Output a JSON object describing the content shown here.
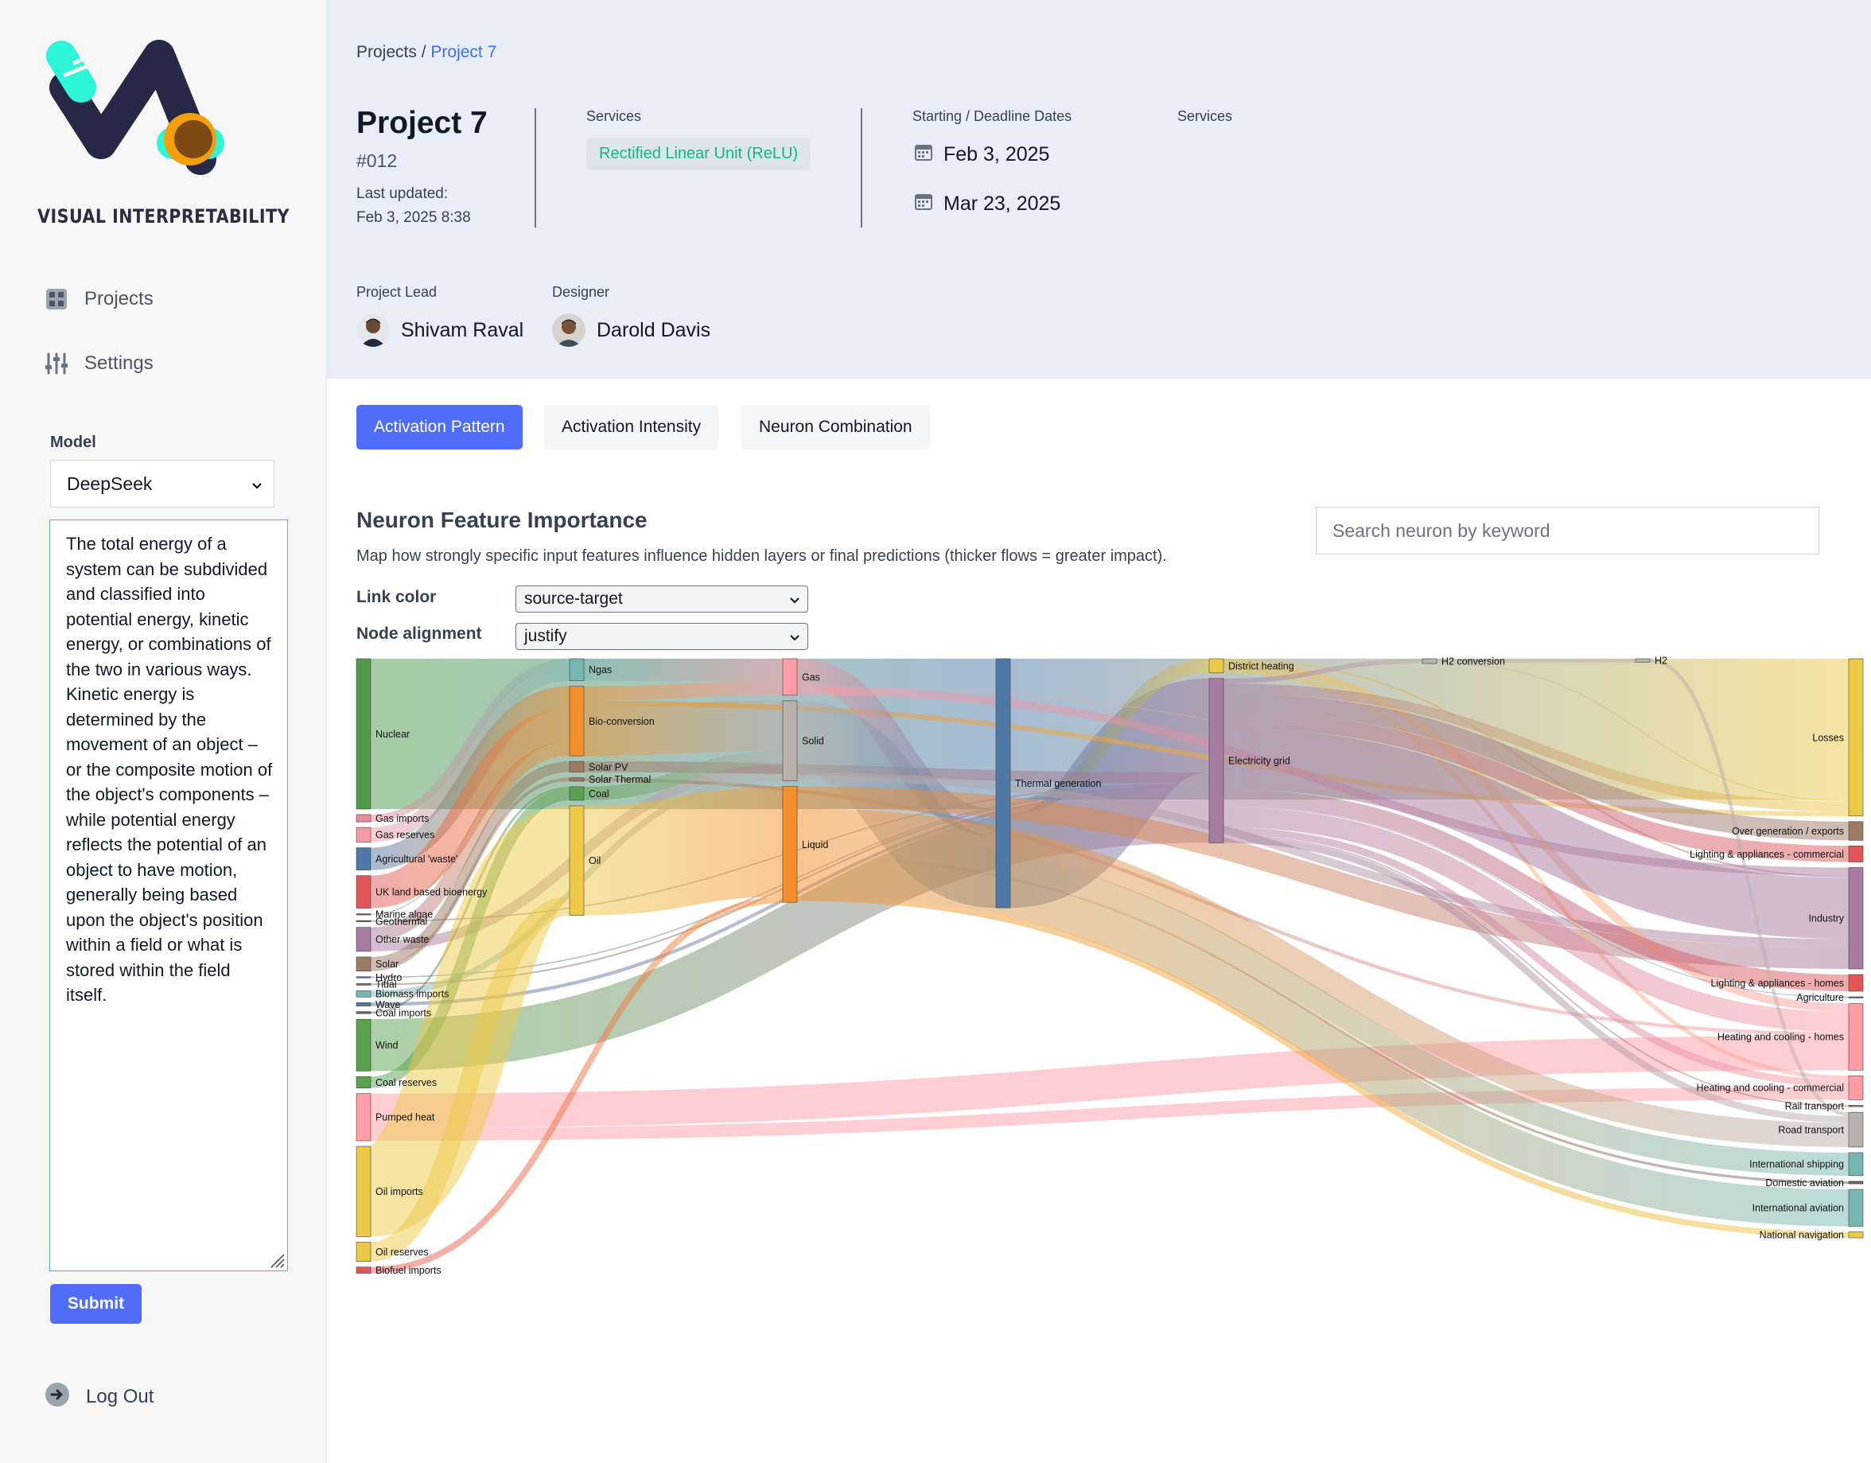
{
  "sidebar": {
    "brand": "VISUAL INTERPRETABILITY",
    "nav": [
      {
        "label": "Projects",
        "icon": "grid-icon"
      },
      {
        "label": "Settings",
        "icon": "sliders-icon"
      }
    ],
    "model_label": "Model",
    "model_selected": "DeepSeek",
    "prompt_text": "The total energy of a system can be subdivided and classified into potential energy, kinetic energy, or combinations of the two in various ways. Kinetic energy is determined by the movement of an object – or the composite motion of the object's components – while potential energy reflects the potential of an object to have motion, generally being based upon the object's position within a field or what is stored within the field itself.",
    "submit_label": "Submit",
    "logout_label": "Log Out"
  },
  "header": {
    "breadcrumb_root": "Projects",
    "breadcrumb_sep": "/",
    "breadcrumb_current": "Project 7",
    "title": "Project 7",
    "id": "#012",
    "updated_label": "Last updated:",
    "updated_value": "Feb 3, 2025 8:38",
    "services_label": "Services",
    "service_badge": "Rectified Linear Unit (ReLU)",
    "dates_label": "Starting / Deadline Dates",
    "start_date": "Feb 3, 2025",
    "deadline_date": "Mar 23, 2025",
    "services_label_2": "Services",
    "lead_label": "Project Lead",
    "lead_name": "Shivam Raval",
    "designer_label": "Designer",
    "designer_name": "Darold Davis"
  },
  "tabs": [
    "Activation Pattern",
    "Activation Intensity",
    "Neuron Combination"
  ],
  "panel": {
    "title": "Neuron Feature Importance",
    "description": "Map how strongly specific input features influence hidden layers or final predictions (thicker flows = greater impact).",
    "search_placeholder": "Search neuron by keyword",
    "link_color_label": "Link color",
    "link_color_value": "source-target",
    "node_alignment_label": "Node alignment",
    "node_alignment_value": "justify"
  },
  "colors": {
    "accent": "#4f6ef7",
    "badge_text": "#10b981",
    "header_bg": "#e8eef7"
  },
  "chart_data": {
    "type": "sankey",
    "nodes": [
      {
        "id": "nuclear",
        "label": "Nuclear",
        "color": "#4e9a4a"
      },
      {
        "id": "gas_imports",
        "label": "Gas imports",
        "color": "#e58d9c"
      },
      {
        "id": "gas_reserves",
        "label": "Gas reserves",
        "color": "#f39aa4"
      },
      {
        "id": "agri_waste",
        "label": "Agricultural 'waste'",
        "color": "#4f78a8"
      },
      {
        "id": "uk_bio",
        "label": "UK land based bioenergy",
        "color": "#e15759"
      },
      {
        "id": "marine_algae",
        "label": "Marine algae",
        "color": "#666"
      },
      {
        "id": "geothermal",
        "label": "Geothermal",
        "color": "#666"
      },
      {
        "id": "other_waste",
        "label": "Other waste",
        "color": "#a77aa0"
      },
      {
        "id": "solar",
        "label": "Solar",
        "color": "#9c7a63"
      },
      {
        "id": "hydro",
        "label": "Hydro",
        "color": "#4e79a7"
      },
      {
        "id": "tidal",
        "label": "Tidal",
        "color": "#8c6d63"
      },
      {
        "id": "biomass_imports",
        "label": "Biomass imports",
        "color": "#76b7b2"
      },
      {
        "id": "wave",
        "label": "Wave",
        "color": "#4e79a7"
      },
      {
        "id": "coal_imports",
        "label": "Coal imports",
        "color": "#666"
      },
      {
        "id": "wind",
        "label": "Wind",
        "color": "#59a14f"
      },
      {
        "id": "coal_reserves",
        "label": "Coal reserves",
        "color": "#59a14f"
      },
      {
        "id": "pumped_heat",
        "label": "Pumped heat",
        "color": "#ff9da7"
      },
      {
        "id": "oil_imports",
        "label": "Oil imports",
        "color": "#edc948"
      },
      {
        "id": "oil_reserves",
        "label": "Oil reserves",
        "color": "#edc948"
      },
      {
        "id": "biofuel_imports",
        "label": "Biofuel imports",
        "color": "#e15759"
      },
      {
        "id": "ngas",
        "label": "Ngas",
        "color": "#76b7b2"
      },
      {
        "id": "bioconv",
        "label": "Bio-conversion",
        "color": "#f28e2b"
      },
      {
        "id": "solar_pv",
        "label": "Solar PV",
        "color": "#9c7a63"
      },
      {
        "id": "solar_thermal",
        "label": "Solar Thermal",
        "color": "#9c7a63"
      },
      {
        "id": "coal",
        "label": "Coal",
        "color": "#59a14f"
      },
      {
        "id": "oil",
        "label": "Oil",
        "color": "#edc948"
      },
      {
        "id": "gas",
        "label": "Gas",
        "color": "#ff9da7"
      },
      {
        "id": "solid",
        "label": "Solid",
        "color": "#bab0ac"
      },
      {
        "id": "liquid",
        "label": "Liquid",
        "color": "#f28e2b"
      },
      {
        "id": "thermal",
        "label": "Thermal generation",
        "color": "#4e79a7"
      },
      {
        "id": "district",
        "label": "District heating",
        "color": "#edc948"
      },
      {
        "id": "grid",
        "label": "Electricity grid",
        "color": "#a77aa0"
      },
      {
        "id": "h2conv",
        "label": "H2 conversion",
        "color": "#bab0ac"
      },
      {
        "id": "h2",
        "label": "H2",
        "color": "#bab0ac"
      },
      {
        "id": "losses",
        "label": "Losses",
        "color": "#edc948"
      },
      {
        "id": "overgen",
        "label": "Over generation / exports",
        "color": "#9c7a63"
      },
      {
        "id": "light_comm",
        "label": "Lighting & appliances - commercial",
        "color": "#e15759"
      },
      {
        "id": "industry",
        "label": "Industry",
        "color": "#a77aa0"
      },
      {
        "id": "light_homes",
        "label": "Lighting & appliances - homes",
        "color": "#e15759"
      },
      {
        "id": "agriculture",
        "label": "Agriculture",
        "color": "#4e79a7"
      },
      {
        "id": "heat_homes",
        "label": "Heating and cooling - homes",
        "color": "#ff9da7"
      },
      {
        "id": "heat_comm",
        "label": "Heating and cooling - commercial",
        "color": "#ff9da7"
      },
      {
        "id": "rail",
        "label": "Rail transport",
        "color": "#9c7a63"
      },
      {
        "id": "road",
        "label": "Road transport",
        "color": "#bab0ac"
      },
      {
        "id": "intl_ship",
        "label": "International shipping",
        "color": "#76b7b2"
      },
      {
        "id": "dom_av",
        "label": "Domestic aviation",
        "color": "#666"
      },
      {
        "id": "intl_av",
        "label": "International aviation",
        "color": "#76b7b2"
      },
      {
        "id": "nat_nav",
        "label": "National navigation",
        "color": "#edc948"
      }
    ],
    "links": [
      {
        "source": "nuclear",
        "target": "thermal",
        "value": 839.978
      },
      {
        "source": "thermal",
        "target": "losses",
        "value": 787.129
      },
      {
        "source": "thermal",
        "target": "grid",
        "value": 525.531
      },
      {
        "source": "thermal",
        "target": "district",
        "value": 79.329
      },
      {
        "source": "gas_imports",
        "target": "ngas",
        "value": 40.719
      },
      {
        "source": "gas_reserves",
        "target": "ngas",
        "value": 82.233
      },
      {
        "source": "ngas",
        "target": "gas",
        "value": 122.952
      },
      {
        "source": "agri_waste",
        "target": "bioconv",
        "value": 124.729
      },
      {
        "source": "uk_bio",
        "target": "bioconv",
        "value": 182.01
      },
      {
        "source": "other_waste",
        "target": "bioconv",
        "value": 77.81
      },
      {
        "source": "other_waste",
        "target": "solid",
        "value": 56.587
      },
      {
        "source": "marine_algae",
        "target": "bioconv",
        "value": 4.375
      },
      {
        "source": "geothermal",
        "target": "grid",
        "value": 7.013
      },
      {
        "source": "bioconv",
        "target": "gas",
        "value": 81.144
      },
      {
        "source": "bioconv",
        "target": "solid",
        "value": 280.322
      },
      {
        "source": "bioconv",
        "target": "liquid",
        "value": 0.597
      },
      {
        "source": "bioconv",
        "target": "losses",
        "value": 26.862
      },
      {
        "source": "solar",
        "target": "solar_pv",
        "value": 59.901
      },
      {
        "source": "solar",
        "target": "solar_thermal",
        "value": 19.263
      },
      {
        "source": "solar_pv",
        "target": "grid",
        "value": 59.901
      },
      {
        "source": "solar_thermal",
        "target": "heat_homes",
        "value": 19.263
      },
      {
        "source": "hydro",
        "target": "grid",
        "value": 6.995
      },
      {
        "source": "tidal",
        "target": "grid",
        "value": 9.452
      },
      {
        "source": "biomass_imports",
        "target": "solid",
        "value": 35
      },
      {
        "source": "wave",
        "target": "grid",
        "value": 19.013
      },
      {
        "source": "coal_imports",
        "target": "coal",
        "value": 11.606
      },
      {
        "source": "wind",
        "target": "grid",
        "value": 289.366
      },
      {
        "source": "coal_reserves",
        "target": "coal",
        "value": 63.965
      },
      {
        "source": "coal",
        "target": "solid",
        "value": 75.571
      },
      {
        "source": "pumped_heat",
        "target": "heat_homes",
        "value": 193.026
      },
      {
        "source": "pumped_heat",
        "target": "heat_comm",
        "value": 70.672
      },
      {
        "source": "oil_imports",
        "target": "oil",
        "value": 504.287
      },
      {
        "source": "oil_reserves",
        "target": "oil",
        "value": 107.703
      },
      {
        "source": "biofuel_imports",
        "target": "liquid",
        "value": 35
      },
      {
        "source": "oil",
        "target": "liquid",
        "value": 611.99
      },
      {
        "source": "gas",
        "target": "thermal",
        "value": 151.891
      },
      {
        "source": "gas",
        "target": "losses",
        "value": 2.329
      },
      {
        "source": "gas",
        "target": "industry",
        "value": 46.184
      },
      {
        "source": "solid",
        "target": "thermal",
        "value": 400.12
      },
      {
        "source": "solid",
        "target": "industry",
        "value": 46.477
      },
      {
        "source": "liquid",
        "target": "road",
        "value": 135.835
      },
      {
        "source": "liquid",
        "target": "intl_ship",
        "value": 128.69
      },
      {
        "source": "liquid",
        "target": "intl_av",
        "value": 206.267
      },
      {
        "source": "liquid",
        "target": "nat_nav",
        "value": 33.218
      },
      {
        "source": "liquid",
        "target": "dom_av",
        "value": 14.458
      },
      {
        "source": "liquid",
        "target": "industry",
        "value": 121.066
      },
      {
        "source": "district",
        "target": "industry",
        "value": 10.639
      },
      {
        "source": "district",
        "target": "heat_comm",
        "value": 22.505
      },
      {
        "source": "district",
        "target": "heat_homes",
        "value": 46.184
      },
      {
        "source": "grid",
        "target": "overgen",
        "value": 104.453
      },
      {
        "source": "grid",
        "target": "heat_homes",
        "value": 113.726
      },
      {
        "source": "grid",
        "target": "h2conv",
        "value": 27.14
      },
      {
        "source": "grid",
        "target": "industry",
        "value": 342.165
      },
      {
        "source": "grid",
        "target": "road",
        "value": 37.797
      },
      {
        "source": "grid",
        "target": "agriculture",
        "value": 4.412
      },
      {
        "source": "grid",
        "target": "heat_comm",
        "value": 40.858
      },
      {
        "source": "grid",
        "target": "losses",
        "value": 56.691
      },
      {
        "source": "grid",
        "target": "rail",
        "value": 7.863
      },
      {
        "source": "grid",
        "target": "light_comm",
        "value": 90.008
      },
      {
        "source": "grid",
        "target": "light_homes",
        "value": 93.494
      },
      {
        "source": "h2conv",
        "target": "h2",
        "value": 20.897
      },
      {
        "source": "h2conv",
        "target": "losses",
        "value": 6.242
      },
      {
        "source": "h2",
        "target": "road",
        "value": 20.897
      }
    ]
  }
}
